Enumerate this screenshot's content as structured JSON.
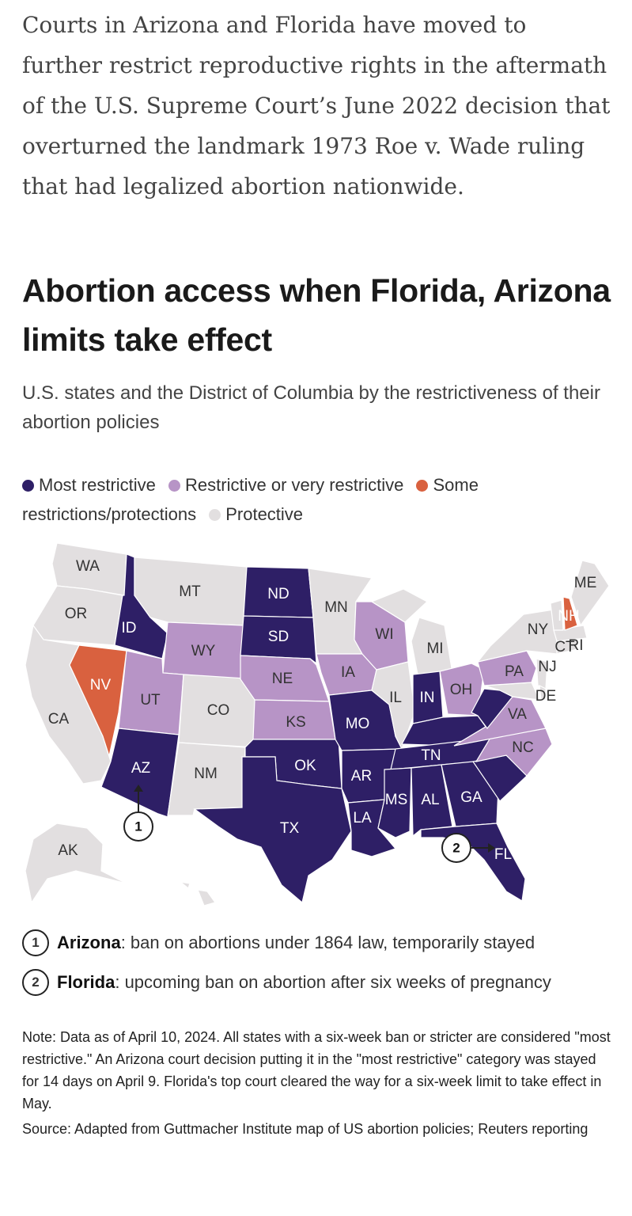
{
  "intro": "Courts in Arizona and Florida have moved to further restrict reproductive rights in the aftermath of the U.S. Supreme Court’s June 2022 decision that overturned the landmark 1973 Roe v. Wade ruling that had legalized abortion nationwide.",
  "title": "Abortion access when Florida, Arizona limits take effect",
  "subtitle": "U.S. states and the District of Columbia by the restrictiveness of their abortion policies",
  "legend": [
    {
      "label": "Most restrictive",
      "color": "#2e1f66"
    },
    {
      "label": "Restrictive or very restrictive",
      "color": "#b794c6"
    },
    {
      "label": "Some restrictions/protections",
      "color": "#d9613f"
    },
    {
      "label": "Protective",
      "color": "#e2dfe0"
    }
  ],
  "states": {
    "WA": "Protective",
    "OR": "Protective",
    "CA": "Protective",
    "NV": "Some restrictions/protections",
    "ID": "Most restrictive",
    "MT": "Protective",
    "WY": "Restrictive or very restrictive",
    "UT": "Restrictive or very restrictive",
    "AZ": "Most restrictive",
    "CO": "Protective",
    "NM": "Protective",
    "ND": "Most restrictive",
    "SD": "Most restrictive",
    "NE": "Restrictive or very restrictive",
    "KS": "Restrictive or very restrictive",
    "OK": "Most restrictive",
    "TX": "Most restrictive",
    "MN": "Protective",
    "IA": "Restrictive or very restrictive",
    "MO": "Most restrictive",
    "AR": "Most restrictive",
    "LA": "Most restrictive",
    "WI": "Restrictive or very restrictive",
    "IL": "Protective",
    "MI": "Protective",
    "IN": "Most restrictive",
    "OH": "Restrictive or very restrictive",
    "KY": "Most restrictive",
    "TN": "Most restrictive",
    "MS": "Most restrictive",
    "AL": "Most restrictive",
    "GA": "Most restrictive",
    "FL": "Most restrictive",
    "SC": "Most restrictive",
    "NC": "Restrictive or very restrictive",
    "VA": "Restrictive or very restrictive",
    "WV": "Most restrictive",
    "PA": "Restrictive or very restrictive",
    "NY": "Protective",
    "NJ": "Protective",
    "DE": "Protective",
    "CT": "Protective",
    "RI": "Protective",
    "NH": "Some restrictions/protections",
    "VT": "Protective",
    "MA": "Protective",
    "ME": "Protective",
    "MD": "Protective",
    "DC": "Protective",
    "AK": "Protective",
    "HI": "Protective"
  },
  "labels": {
    "WA": "WA",
    "OR": "OR",
    "CA": "CA",
    "NV": "NV",
    "ID": "ID",
    "MT": "MT",
    "WY": "WY",
    "UT": "UT",
    "AZ": "AZ",
    "CO": "CO",
    "NM": "NM",
    "ND": "ND",
    "SD": "SD",
    "NE": "NE",
    "KS": "KS",
    "OK": "OK",
    "TX": "TX",
    "MN": "MN",
    "IA": "IA",
    "MO": "MO",
    "AR": "AR",
    "LA": "LA",
    "WI": "WI",
    "IL": "IL",
    "MI": "MI",
    "IN": "IN",
    "OH": "OH",
    "TN": "TN",
    "MS": "MS",
    "AL": "AL",
    "GA": "GA",
    "FL": "FL",
    "NC": "NC",
    "VA": "VA",
    "PA": "PA",
    "NY": "NY",
    "NJ": "NJ",
    "DE": "DE",
    "CT": "CT",
    "RI": "RI",
    "NH": "NH",
    "ME": "ME",
    "AK": "AK"
  },
  "callouts": [
    {
      "num": "1",
      "state": "Arizona",
      "text": ": ban on abortions under 1864 law, temporarily stayed"
    },
    {
      "num": "2",
      "state": "Florida",
      "text": ": upcoming ban on abortion after six weeks of pregnancy"
    }
  ],
  "note": "Note: Data as of April 10, 2024. All states with a six-week ban or stricter are considered \"most restrictive.\" An Arizona court decision putting it in the \"most restrictive\" category was stayed for 14 days on April 9. Florida's top court cleared the way for a six-week limit to take effect in May.",
  "source": "Source: Adapted from Guttmacher Institute map of US abortion policies; Reuters reporting"
}
